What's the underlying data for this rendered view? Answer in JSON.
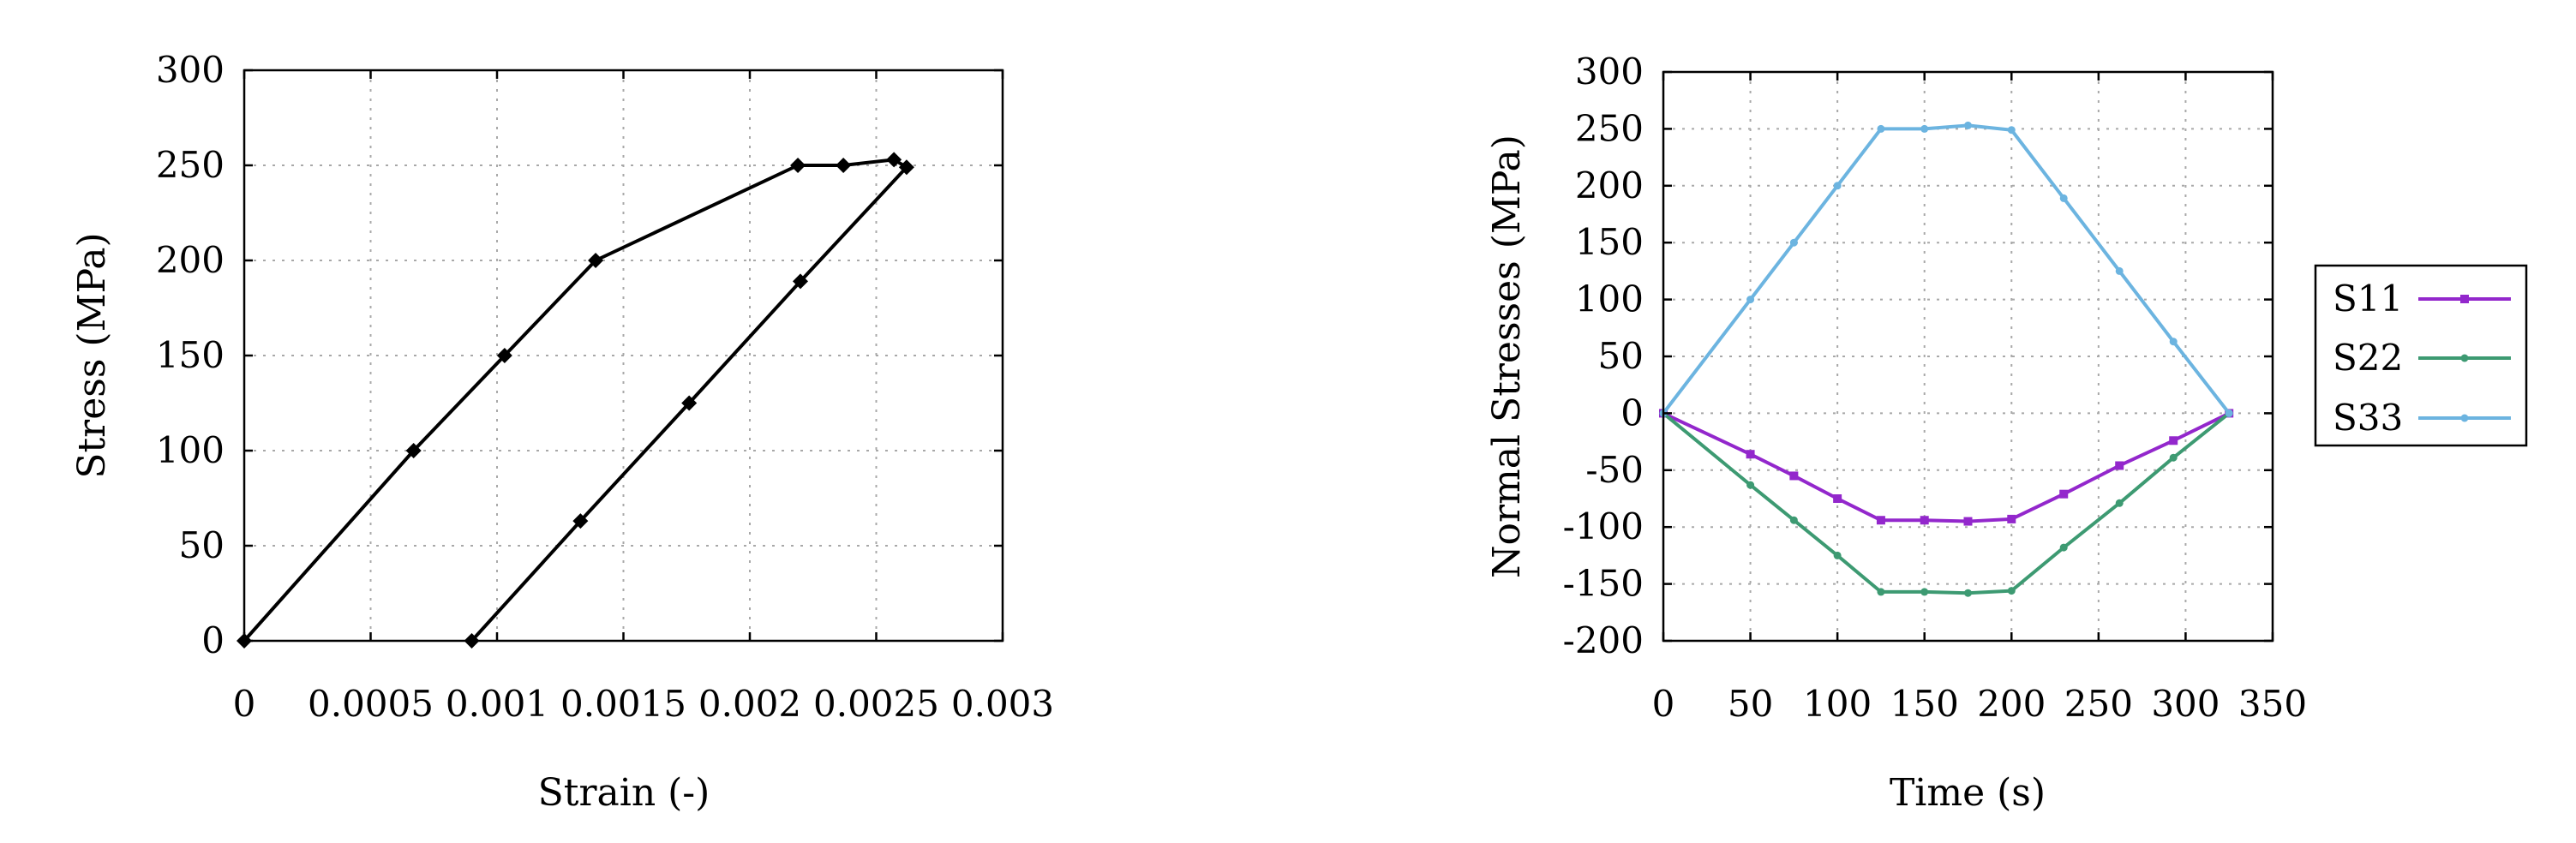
{
  "chart_data": [
    {
      "type": "line",
      "title": "",
      "xlabel": "Strain (-)",
      "ylabel": "Stress (MPa)",
      "xlim": [
        0,
        0.003
      ],
      "ylim": [
        0,
        300
      ],
      "xticks": [
        0,
        0.0005,
        0.001,
        0.0015,
        0.002,
        0.0025,
        0.003
      ],
      "xtick_labels": [
        "0",
        "0.0005",
        "0.001",
        "0.0015",
        "0.002",
        "0.0025",
        "0.003"
      ],
      "yticks": [
        0,
        50,
        100,
        150,
        200,
        250,
        300
      ],
      "ytick_labels": [
        "0",
        "50",
        "100",
        "150",
        "200",
        "250",
        "300"
      ],
      "grid": true,
      "legend": "none",
      "series": [
        {
          "color": "#000000",
          "marker": "diamond",
          "x": [
            0,
            0.00067,
            0.00103,
            0.00139,
            0.00219,
            0.00237,
            0.00257,
            0.00262,
            0.0022,
            0.00176,
            0.00133,
            0.0009
          ],
          "y": [
            0,
            100,
            150,
            200,
            250,
            250,
            253,
            249,
            189,
            125,
            63,
            0
          ]
        }
      ]
    },
    {
      "type": "line",
      "title": "",
      "xlabel": "Time (s)",
      "ylabel": "Normal Stresses (MPa)",
      "xlim": [
        0,
        350
      ],
      "ylim": [
        -200,
        300
      ],
      "xticks": [
        0,
        50,
        100,
        150,
        200,
        250,
        300,
        350
      ],
      "xtick_labels": [
        "0",
        "50",
        "100",
        "150",
        "200",
        "250",
        "300",
        "350"
      ],
      "yticks": [
        -200,
        -150,
        -100,
        -50,
        0,
        50,
        100,
        150,
        200,
        250,
        300
      ],
      "ytick_labels": [
        "-200",
        "-150",
        "-100",
        "-50",
        "0",
        "50",
        "100",
        "150",
        "200",
        "250",
        "300"
      ],
      "grid": true,
      "legend": "right",
      "series": [
        {
          "name": "S11",
          "color": "#9327cc",
          "marker": "square",
          "x": [
            0,
            50,
            75,
            100,
            125,
            150,
            175,
            200,
            230,
            262,
            293,
            325
          ],
          "y": [
            0,
            -36,
            -55,
            -75,
            -94,
            -94,
            -95,
            -93,
            -71,
            -46,
            -24,
            0
          ]
        },
        {
          "name": "S22",
          "color": "#3d9a72",
          "marker": "circle",
          "x": [
            0,
            50,
            75,
            100,
            125,
            150,
            175,
            200,
            230,
            262,
            293,
            325
          ],
          "y": [
            0,
            -63,
            -94,
            -125,
            -157,
            -157,
            -158,
            -156,
            -118,
            -79,
            -39,
            0
          ]
        },
        {
          "name": "S33",
          "color": "#6cb4e0",
          "marker": "circle",
          "x": [
            0,
            50,
            75,
            100,
            125,
            150,
            175,
            200,
            230,
            262,
            293,
            325
          ],
          "y": [
            0,
            100,
            150,
            200,
            250,
            250,
            253,
            249,
            189,
            125,
            63,
            0
          ]
        }
      ]
    }
  ]
}
